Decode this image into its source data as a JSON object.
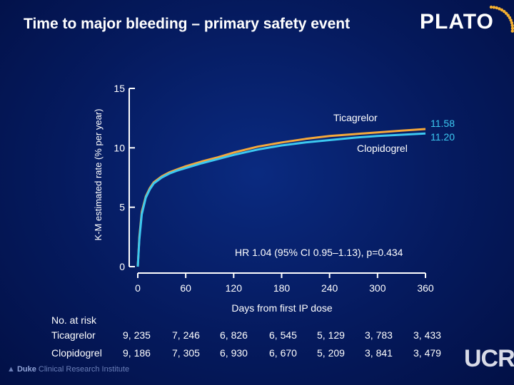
{
  "header": {
    "title": "Time to major bleeding – primary safety event",
    "logo": "PLATO"
  },
  "chart_data": {
    "type": "line",
    "title": "Time to major bleeding – primary safety event",
    "xlabel": "Days from first IP dose",
    "ylabel": "K-M estimated rate (% per year)",
    "xlim": [
      0,
      360
    ],
    "ylim": [
      0,
      15
    ],
    "x_ticks": [
      0,
      60,
      120,
      180,
      240,
      300,
      360
    ],
    "y_ticks": [
      0,
      5,
      10,
      15
    ],
    "grid": false,
    "series": [
      {
        "name": "Ticagrelor",
        "color": "#f5a83a",
        "end_label": "11.58",
        "x": [
          0,
          2,
          5,
          10,
          15,
          20,
          30,
          40,
          50,
          60,
          80,
          100,
          120,
          150,
          180,
          210,
          240,
          270,
          300,
          330,
          360
        ],
        "y": [
          0,
          2.5,
          4.6,
          5.9,
          6.6,
          7.1,
          7.6,
          7.95,
          8.2,
          8.45,
          8.85,
          9.2,
          9.6,
          10.1,
          10.45,
          10.75,
          11.0,
          11.15,
          11.3,
          11.45,
          11.58
        ]
      },
      {
        "name": "Clopidogrel",
        "color": "#3cc8f0",
        "end_label": "11.20",
        "x": [
          0,
          2,
          5,
          10,
          15,
          20,
          30,
          40,
          50,
          60,
          80,
          100,
          120,
          150,
          180,
          210,
          240,
          270,
          300,
          330,
          360
        ],
        "y": [
          0,
          2.3,
          4.4,
          5.8,
          6.5,
          7.0,
          7.5,
          7.85,
          8.1,
          8.3,
          8.7,
          9.05,
          9.4,
          9.85,
          10.2,
          10.45,
          10.65,
          10.85,
          11.0,
          11.1,
          11.2
        ]
      }
    ],
    "annotation": "HR 1.04 (95% CI 0.95–1.13), p=0.434"
  },
  "risk_table": {
    "header": "No. at risk",
    "rows": [
      {
        "label": "Ticagrelor",
        "values": [
          "9, 235",
          "7, 246",
          "6, 826",
          "6, 545",
          "5, 129",
          "3, 783",
          "3, 433"
        ]
      },
      {
        "label": "Clopidogrel",
        "values": [
          "9, 186",
          "7, 305",
          "6, 930",
          "6, 670",
          "5, 209",
          "3, 841",
          "3, 479"
        ]
      }
    ]
  },
  "footer": {
    "org_bold": "Duke",
    "org_rest": " Clinical Research Institute",
    "ucr": "UCR"
  }
}
